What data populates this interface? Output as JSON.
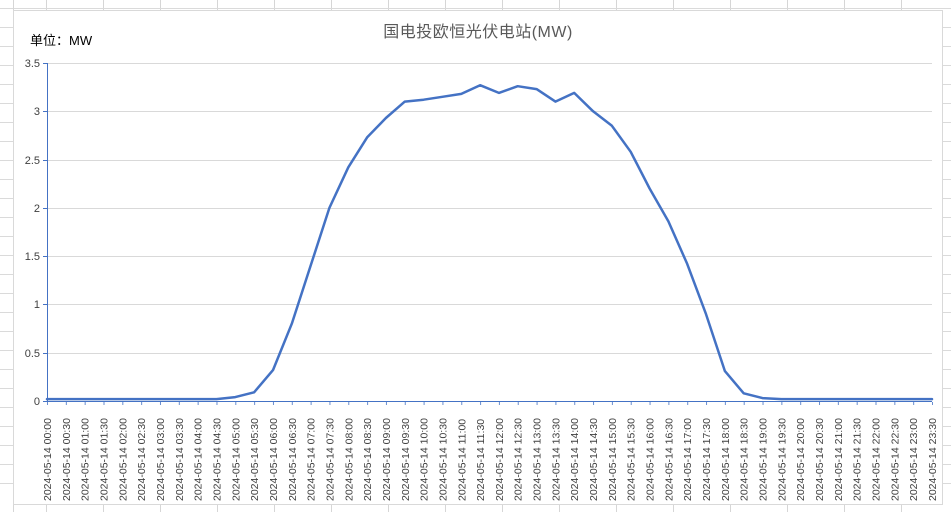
{
  "sheet": {
    "unit_label": "单位：MW"
  },
  "chart_data": {
    "type": "line",
    "title": "国电投欧恒光伏电站(MW)",
    "xlabel": "",
    "ylabel": "",
    "ylim": [
      0,
      3.5
    ],
    "yticks": [
      0,
      0.5,
      1,
      1.5,
      2,
      2.5,
      3,
      3.5
    ],
    "grid": "horizontal",
    "legend": "none",
    "line_color": "#4472C4",
    "gridline_color": "#d9d9d9",
    "axis_color": "#4472C4",
    "tick_label_color": "#404040",
    "x": [
      "2024-05-14 00:00",
      "2024-05-14 00:30",
      "2024-05-14 01:00",
      "2024-05-14 01:30",
      "2024-05-14 02:00",
      "2024-05-14 02:30",
      "2024-05-14 03:00",
      "2024-05-14 03:30",
      "2024-05-14 04:00",
      "2024-05-14 04:30",
      "2024-05-14 05:00",
      "2024-05-14 05:30",
      "2024-05-14 06:00",
      "2024-05-14 06:30",
      "2024-05-14 07:00",
      "2024-05-14 07:30",
      "2024-05-14 08:00",
      "2024-05-14 08:30",
      "2024-05-14 09:00",
      "2024-05-14 09:30",
      "2024-05-14 10:00",
      "2024-05-14 10:30",
      "2024-05-14 11:00",
      "2024-05-14 11:30",
      "2024-05-14 12:00",
      "2024-05-14 12:30",
      "2024-05-14 13:00",
      "2024-05-14 13:30",
      "2024-05-14 14:00",
      "2024-05-14 14:30",
      "2024-05-14 15:00",
      "2024-05-14 15:30",
      "2024-05-14 16:00",
      "2024-05-14 16:30",
      "2024-05-14 17:00",
      "2024-05-14 17:30",
      "2024-05-14 18:00",
      "2024-05-14 18:30",
      "2024-05-14 19:00",
      "2024-05-14 19:30",
      "2024-05-14 20:00",
      "2024-05-14 20:30",
      "2024-05-14 21:00",
      "2024-05-14 21:30",
      "2024-05-14 22:00",
      "2024-05-14 22:30",
      "2024-05-14 23:00",
      "2024-05-14 23:30"
    ],
    "values": [
      0.02,
      0.02,
      0.02,
      0.02,
      0.02,
      0.02,
      0.02,
      0.02,
      0.02,
      0.02,
      0.04,
      0.09,
      0.32,
      0.8,
      1.4,
      2.0,
      2.42,
      2.73,
      2.93,
      3.1,
      3.12,
      3.15,
      3.18,
      3.27,
      3.19,
      3.26,
      3.23,
      3.1,
      3.19,
      3.0,
      2.85,
      2.58,
      2.2,
      1.86,
      1.42,
      0.9,
      0.31,
      0.08,
      0.03,
      0.02,
      0.02,
      0.02,
      0.02,
      0.02,
      0.02,
      0.02,
      0.02,
      0.02
    ]
  }
}
